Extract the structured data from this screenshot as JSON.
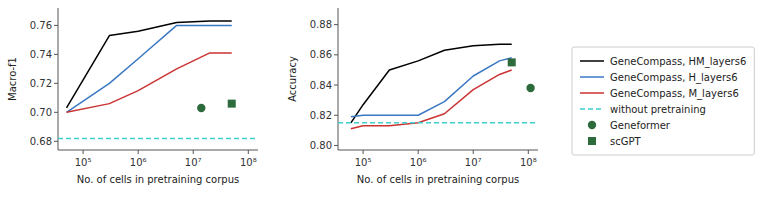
{
  "chart_data": [
    {
      "type": "line",
      "x_label": "No. of cells in pretraining corpus",
      "y_label": "Macro-f1",
      "log": "x",
      "xlim": [
        35000.0,
        150000000.0
      ],
      "xticks": [
        {
          "value": 100000,
          "label": "10⁵"
        },
        {
          "value": 1000000,
          "label": "10⁶"
        },
        {
          "value": 10000000,
          "label": "10⁷"
        },
        {
          "value": 100000000,
          "label": "10⁸"
        }
      ],
      "ylim": [
        0.674,
        0.772
      ],
      "yticks": [
        0.68,
        {
          "value": 0.7,
          "label": "0.70"
        },
        0.72,
        0.74,
        0.76
      ],
      "series": [
        {
          "name": "GeneCompass, HM_layers6",
          "type": "line",
          "line_style": "solid",
          "color": "#000000",
          "x": [
            50000.0,
            300000.0,
            1000000.0,
            5000000.0,
            20000000.0,
            50000000.0
          ],
          "values": [
            0.703,
            0.753,
            0.756,
            0.762,
            0.763,
            0.763
          ]
        },
        {
          "name": "GeneCompass, H_layers6",
          "type": "line",
          "line_style": "solid",
          "color": "#3B78C3",
          "x": [
            50000.0,
            300000.0,
            1000000.0,
            5000000.0,
            20000000.0,
            50000000.0
          ],
          "values": [
            0.7,
            0.72,
            0.737,
            0.76,
            0.76,
            0.76
          ]
        },
        {
          "name": "GeneCompass, M_layers6",
          "type": "line",
          "line_style": "solid",
          "color": "#CC3333",
          "x": [
            50000.0,
            300000.0,
            1000000.0,
            5000000.0,
            20000000.0,
            50000000.0
          ],
          "values": [
            0.7,
            0.706,
            0.715,
            0.73,
            0.741,
            0.741
          ]
        },
        {
          "name": "without pretraining",
          "type": "hline",
          "line_style": "dashed",
          "color": "#3ECFCF",
          "values": [
            0.682
          ]
        },
        {
          "name": "Geneformer",
          "type": "scatter",
          "marker": "circle",
          "color": "#2D6B3C",
          "x": [
            14000000.0
          ],
          "values": [
            0.703
          ]
        },
        {
          "name": "scGPT",
          "type": "scatter",
          "marker": "square",
          "color": "#2D6B3C",
          "x": [
            50000000.0
          ],
          "values": [
            0.706
          ]
        }
      ]
    },
    {
      "type": "line",
      "x_label": "No. of cells in pretraining corpus",
      "y_label": "Accuracy",
      "log": "x",
      "legend": "right",
      "xlim": [
        35000.0,
        150000000.0
      ],
      "xticks": [
        {
          "value": 100000,
          "label": "10⁵"
        },
        {
          "value": 1000000,
          "label": "10⁶"
        },
        {
          "value": 10000000,
          "label": "10⁷"
        },
        {
          "value": 100000000,
          "label": "10⁸"
        }
      ],
      "ylim": [
        0.797,
        0.891
      ],
      "yticks": [
        {
          "value": 0.8,
          "label": "0.80"
        },
        0.82,
        0.84,
        0.86,
        0.88
      ],
      "series": [
        {
          "name": "GeneCompass, HM_layers6",
          "type": "line",
          "line_style": "solid",
          "color": "#000000",
          "x": [
            60000.0,
            100000.0,
            300000.0,
            1000000.0,
            3000000.0,
            10000000.0,
            30000000.0,
            50000000.0
          ],
          "values": [
            0.815,
            0.827,
            0.85,
            0.856,
            0.863,
            0.866,
            0.867,
            0.867
          ]
        },
        {
          "name": "GeneCompass, H_layers6",
          "type": "line",
          "line_style": "solid",
          "color": "#3B78C3",
          "x": [
            60000.0,
            100000.0,
            300000.0,
            1000000.0,
            3000000.0,
            10000000.0,
            30000000.0,
            50000000.0
          ],
          "values": [
            0.819,
            0.82,
            0.82,
            0.82,
            0.829,
            0.846,
            0.856,
            0.858
          ]
        },
        {
          "name": "GeneCompass, M_layers6",
          "type": "line",
          "line_style": "solid",
          "color": "#CC3333",
          "x": [
            60000.0,
            100000.0,
            300000.0,
            1000000.0,
            3000000.0,
            10000000.0,
            30000000.0,
            50000000.0
          ],
          "values": [
            0.811,
            0.813,
            0.813,
            0.815,
            0.821,
            0.837,
            0.847,
            0.85
          ]
        },
        {
          "name": "without pretraining",
          "type": "hline",
          "line_style": "dashed",
          "color": "#3ECFCF",
          "values": [
            0.815
          ]
        },
        {
          "name": "Geneformer",
          "type": "scatter",
          "marker": "circle",
          "color": "#2D6B3C",
          "x": [
            110000000.0
          ],
          "values": [
            0.838
          ]
        },
        {
          "name": "scGPT",
          "type": "scatter",
          "marker": "square",
          "color": "#2D6B3C",
          "x": [
            50000000.0
          ],
          "values": [
            0.855
          ]
        }
      ]
    }
  ]
}
